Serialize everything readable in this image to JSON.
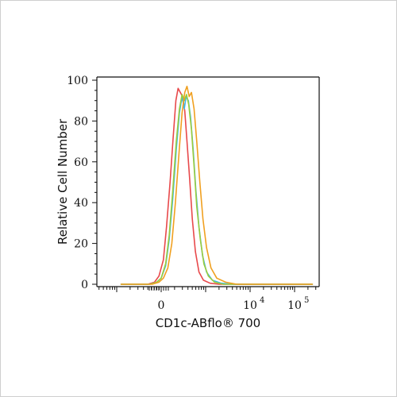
{
  "chart_data": {
    "type": "line",
    "title": "",
    "xlabel": "CD1c-ABflo® 700",
    "ylabel": "Relative Cell Number",
    "ylim": [
      0,
      100
    ],
    "y_ticks": [
      "0",
      "20",
      "40",
      "60",
      "80",
      "100"
    ],
    "x_ticks": [
      {
        "base": "0",
        "exp": ""
      },
      {
        "base": "10",
        "exp": "4"
      },
      {
        "base": "10",
        "exp": "5"
      }
    ],
    "legend": "none",
    "grid": false,
    "series": [
      {
        "color": "#e8494b",
        "points": [
          [
            -0.9,
            0
          ],
          [
            -0.3,
            0
          ],
          [
            -0.15,
            1
          ],
          [
            -0.05,
            4
          ],
          [
            0.05,
            12
          ],
          [
            0.12,
            28
          ],
          [
            0.2,
            50
          ],
          [
            0.27,
            72
          ],
          [
            0.33,
            90
          ],
          [
            0.38,
            96
          ],
          [
            0.43,
            94
          ],
          [
            0.48,
            92
          ],
          [
            0.53,
            85
          ],
          [
            0.58,
            70
          ],
          [
            0.64,
            52
          ],
          [
            0.7,
            32
          ],
          [
            0.77,
            16
          ],
          [
            0.85,
            6
          ],
          [
            0.95,
            2
          ],
          [
            1.1,
            0.5
          ],
          [
            1.3,
            0
          ],
          [
            3.4,
            0
          ]
        ]
      },
      {
        "color": "#3db8e8",
        "points": [
          [
            -0.9,
            0
          ],
          [
            -0.25,
            0
          ],
          [
            -0.1,
            1
          ],
          [
            0,
            3
          ],
          [
            0.1,
            9
          ],
          [
            0.18,
            22
          ],
          [
            0.26,
            42
          ],
          [
            0.34,
            66
          ],
          [
            0.41,
            84
          ],
          [
            0.47,
            92
          ],
          [
            0.52,
            86
          ],
          [
            0.56,
            92
          ],
          [
            0.61,
            90
          ],
          [
            0.66,
            82
          ],
          [
            0.72,
            66
          ],
          [
            0.78,
            46
          ],
          [
            0.85,
            28
          ],
          [
            0.93,
            14
          ],
          [
            1.02,
            6
          ],
          [
            1.15,
            2
          ],
          [
            1.35,
            0.5
          ],
          [
            1.6,
            0
          ],
          [
            3.4,
            0
          ]
        ]
      },
      {
        "color": "#9ccc3c",
        "points": [
          [
            -0.9,
            0
          ],
          [
            -0.25,
            0
          ],
          [
            -0.1,
            1
          ],
          [
            0,
            3
          ],
          [
            0.1,
            10
          ],
          [
            0.18,
            24
          ],
          [
            0.26,
            46
          ],
          [
            0.34,
            70
          ],
          [
            0.41,
            86
          ],
          [
            0.47,
            93
          ],
          [
            0.52,
            90
          ],
          [
            0.57,
            93
          ],
          [
            0.62,
            88
          ],
          [
            0.68,
            76
          ],
          [
            0.74,
            58
          ],
          [
            0.8,
            38
          ],
          [
            0.88,
            22
          ],
          [
            0.96,
            10
          ],
          [
            1.06,
            4
          ],
          [
            1.2,
            1
          ],
          [
            1.4,
            0
          ],
          [
            3.4,
            0
          ]
        ]
      },
      {
        "color": "#f0a020",
        "points": [
          [
            -0.9,
            0
          ],
          [
            -0.2,
            0
          ],
          [
            -0.05,
            1
          ],
          [
            0.05,
            3
          ],
          [
            0.15,
            8
          ],
          [
            0.24,
            20
          ],
          [
            0.32,
            40
          ],
          [
            0.4,
            64
          ],
          [
            0.47,
            84
          ],
          [
            0.53,
            94
          ],
          [
            0.58,
            97
          ],
          [
            0.63,
            92
          ],
          [
            0.68,
            94
          ],
          [
            0.74,
            86
          ],
          [
            0.8,
            70
          ],
          [
            0.87,
            50
          ],
          [
            0.94,
            32
          ],
          [
            1.02,
            18
          ],
          [
            1.12,
            8
          ],
          [
            1.25,
            3
          ],
          [
            1.45,
            1
          ],
          [
            1.7,
            0
          ],
          [
            3.4,
            0
          ]
        ]
      }
    ]
  }
}
